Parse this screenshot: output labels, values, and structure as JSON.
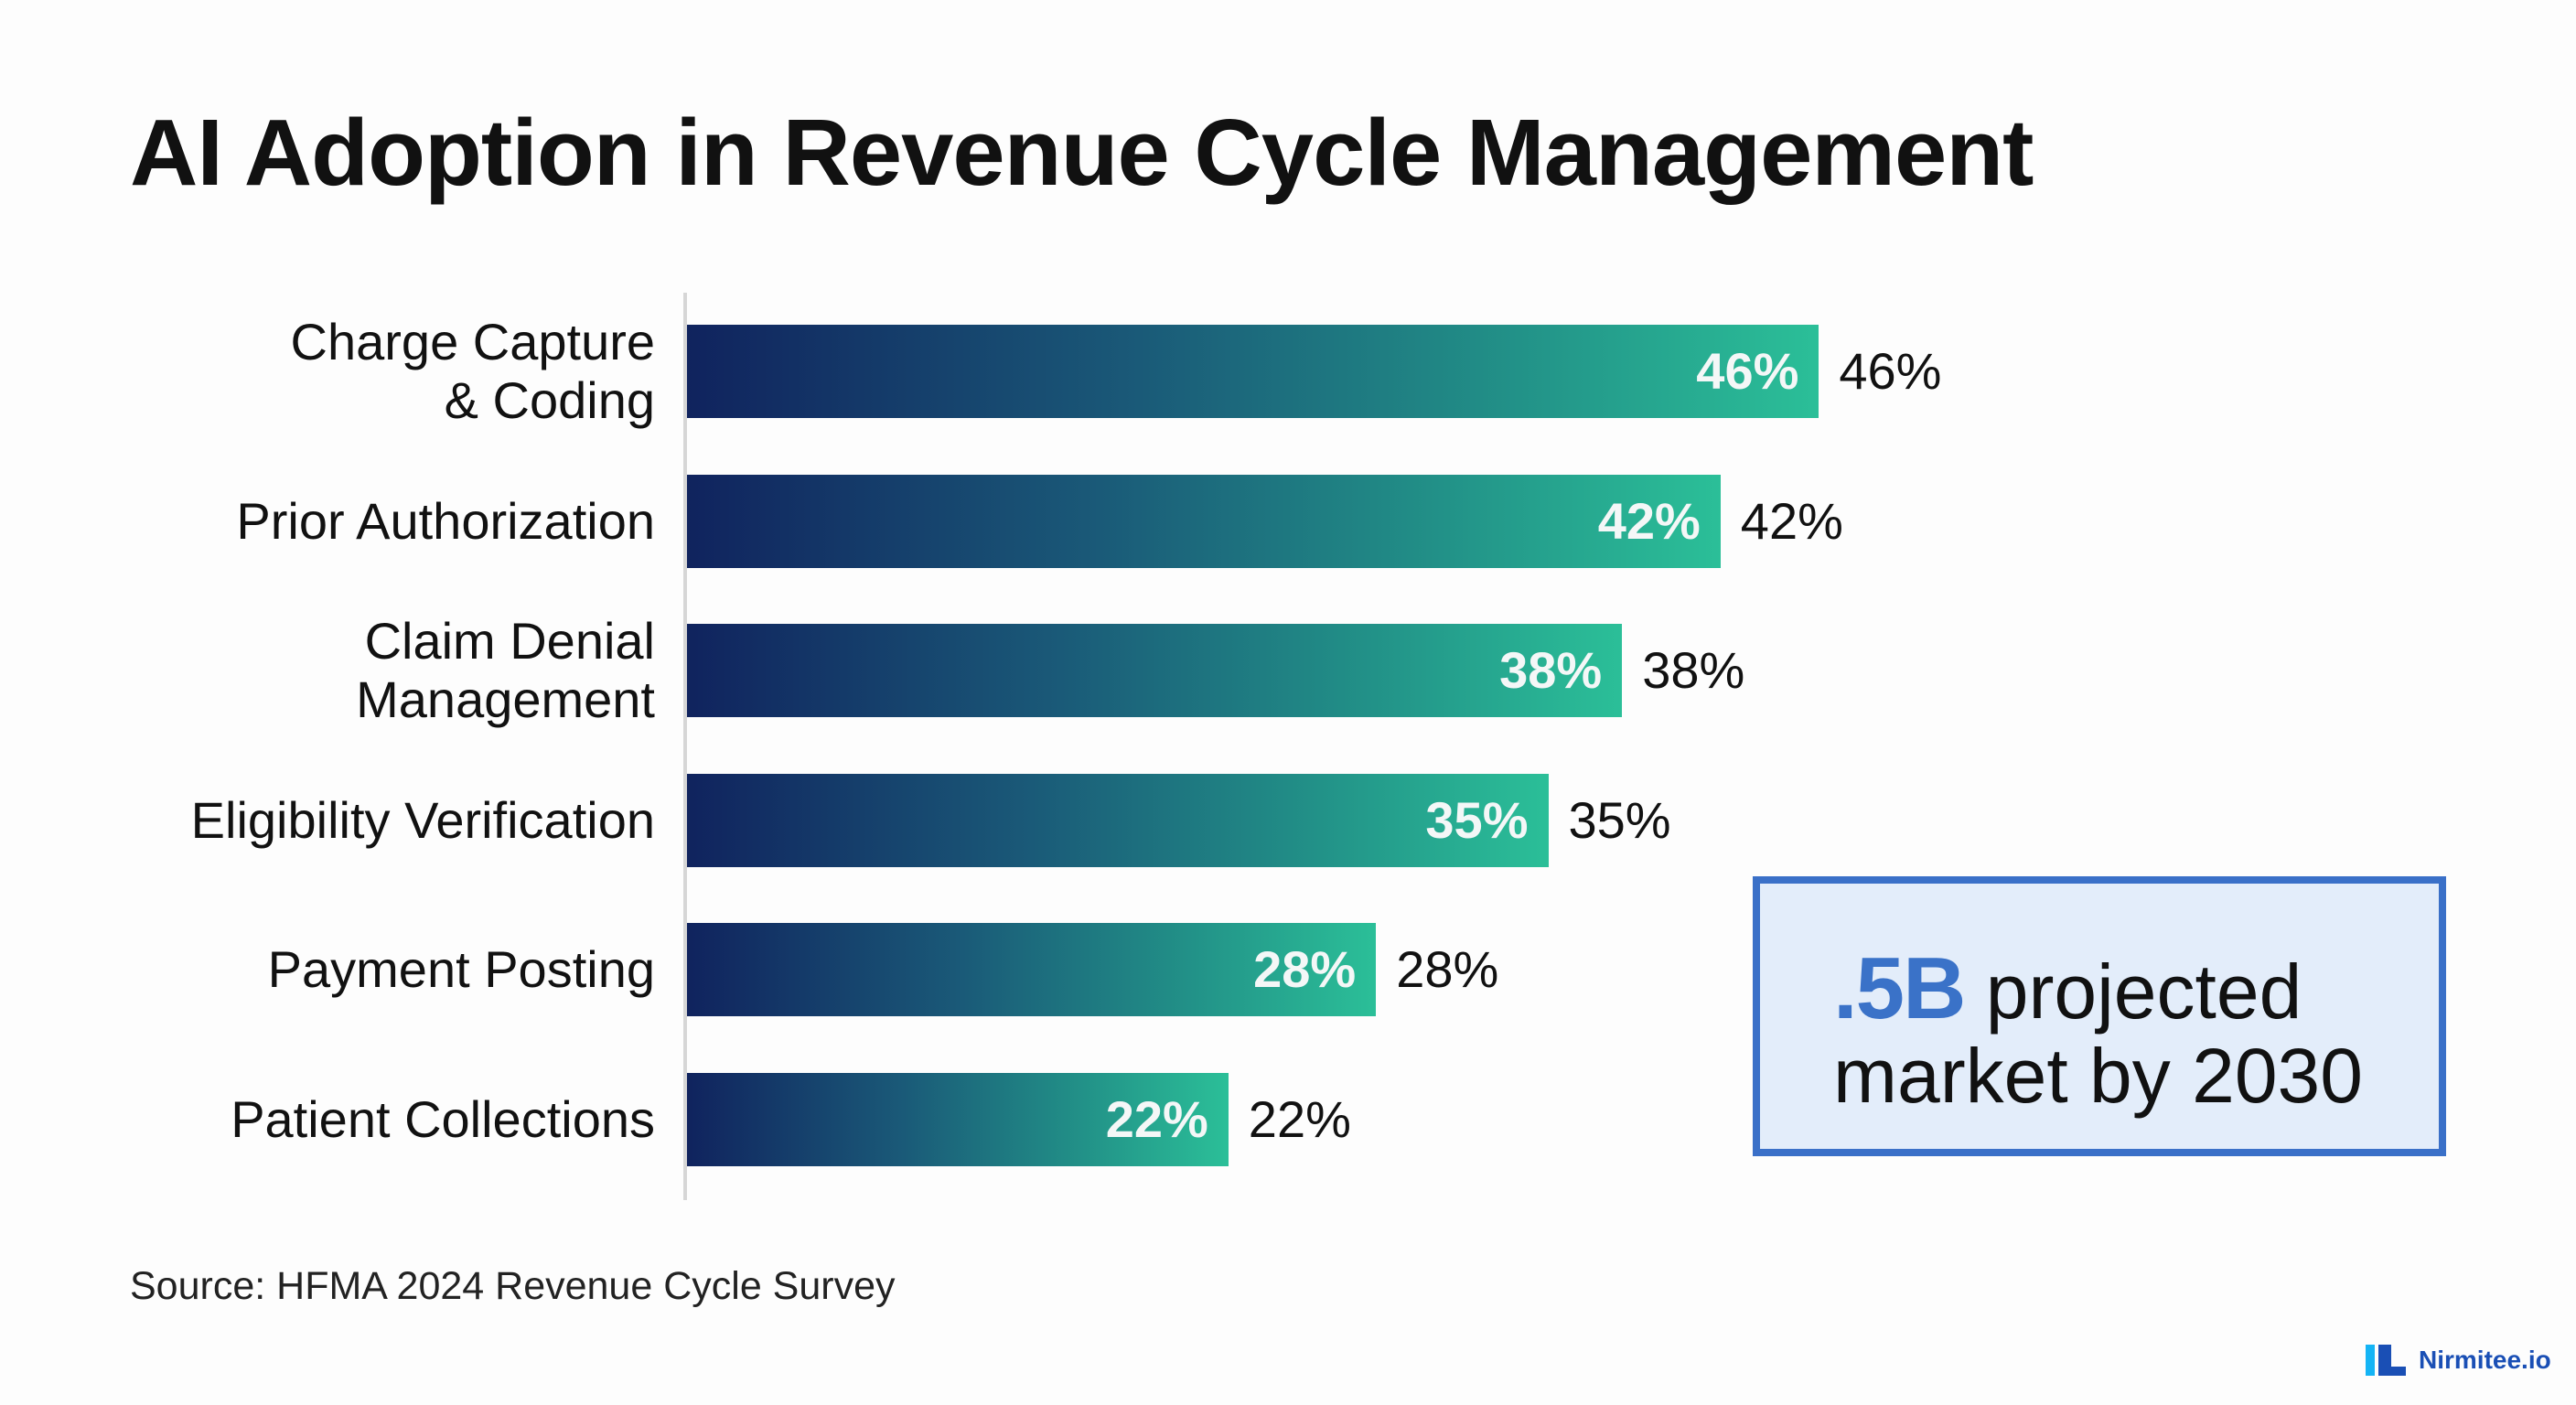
{
  "chart_data": {
    "type": "bar",
    "orientation": "horizontal",
    "title": "AI Adoption in Revenue Cycle Management",
    "categories": [
      "Charge Capture\n& Coding",
      "Prior Authorization",
      "Claim Denial\nManagement",
      "Eligibility Verification",
      "Payment Posting",
      "Patient Collections"
    ],
    "values": [
      46,
      42,
      38,
      35,
      28,
      22
    ],
    "value_labels": [
      "46%",
      "42%",
      "38%",
      "35%",
      "28%",
      "22%"
    ],
    "xlabel": "",
    "ylabel": "",
    "xlim": [
      0,
      100
    ],
    "grid": false,
    "legend": "none",
    "bar_gradient": [
      "#10235e",
      "#2bbf98"
    ]
  },
  "callout": {
    "highlight": ".5B",
    "line1_rest": " projected",
    "line2": "market by 2030",
    "accent_color": "#3a72c8",
    "border_color": "#3a70c8",
    "background": "#e3edfa"
  },
  "source": "Source: HFMA 2024 Revenue Cycle Survey",
  "logo": {
    "text": "Nirmitee.io",
    "color": "#1a4fb5"
  }
}
